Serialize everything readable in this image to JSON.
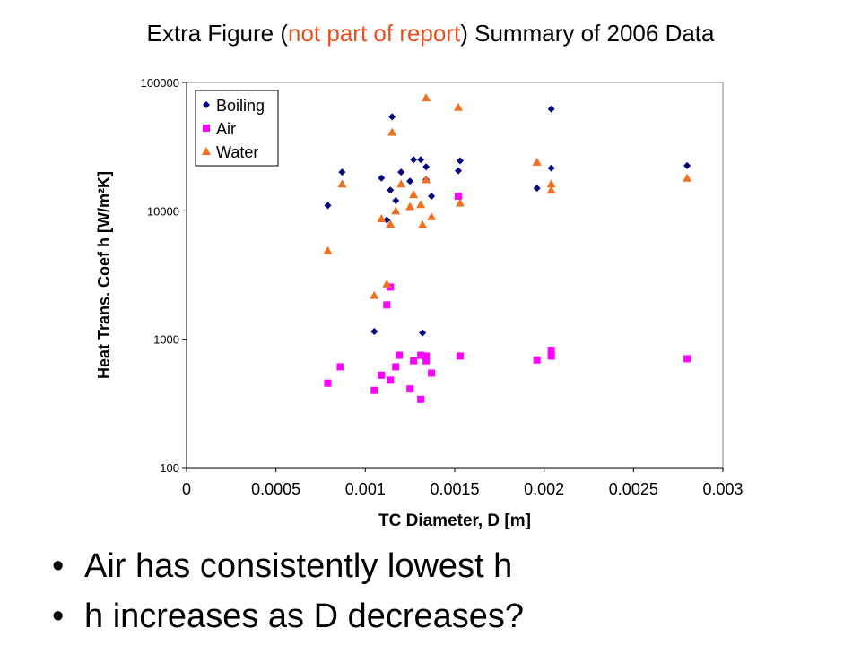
{
  "title": {
    "part1": "Extra Figure (",
    "highlight": "not part of report",
    "part2": ") Summary of 2006 Data",
    "highlight_color": "#e8501d"
  },
  "bullets": [
    "Air has consistently lowest h",
    "h increases as D decreases?"
  ],
  "chart_data": {
    "type": "scatter",
    "xlabel": "TC Diameter, D [m]",
    "ylabel": "Heat Trans. Coef h [W/m²K]",
    "x_scale": "linear",
    "y_scale": "log",
    "xlim": [
      0,
      0.003
    ],
    "ylim": [
      100,
      100000
    ],
    "x_ticks": [
      "0",
      "0.0005",
      "0.001",
      "0.0015",
      "0.002",
      "0.0025",
      "0.003"
    ],
    "y_ticks": [
      "100",
      "1000",
      "10000",
      "100000"
    ],
    "grid": false,
    "legend_position": "top-left",
    "series": [
      {
        "name": "Boiling",
        "marker": "diamond",
        "color": "#000080",
        "points": [
          [
            0.00079,
            11000
          ],
          [
            0.00087,
            20000
          ],
          [
            0.00105,
            1150
          ],
          [
            0.00109,
            18000
          ],
          [
            0.00112,
            8500
          ],
          [
            0.00114,
            14500
          ],
          [
            0.00115,
            54000
          ],
          [
            0.00117,
            12000
          ],
          [
            0.0012,
            20000
          ],
          [
            0.00125,
            17000
          ],
          [
            0.00127,
            25000
          ],
          [
            0.00131,
            25000
          ],
          [
            0.00132,
            1120
          ],
          [
            0.00134,
            22000
          ],
          [
            0.00134,
            17500
          ],
          [
            0.00137,
            13000
          ],
          [
            0.00152,
            20500
          ],
          [
            0.00153,
            24500
          ],
          [
            0.00196,
            15000
          ],
          [
            0.00204,
            62000
          ],
          [
            0.00204,
            21500
          ],
          [
            0.0028,
            22500
          ]
        ]
      },
      {
        "name": "Air",
        "marker": "square",
        "color": "#ff00ff",
        "points": [
          [
            0.00079,
            455
          ],
          [
            0.00086,
            610
          ],
          [
            0.00105,
            400
          ],
          [
            0.00109,
            525
          ],
          [
            0.00112,
            1850
          ],
          [
            0.00114,
            480
          ],
          [
            0.00114,
            2550
          ],
          [
            0.00117,
            610
          ],
          [
            0.00119,
            750
          ],
          [
            0.00125,
            410
          ],
          [
            0.00127,
            680
          ],
          [
            0.00131,
            340
          ],
          [
            0.00131,
            750
          ],
          [
            0.00134,
            680
          ],
          [
            0.00134,
            740
          ],
          [
            0.00137,
            545
          ],
          [
            0.00152,
            13000
          ],
          [
            0.00153,
            740
          ],
          [
            0.00196,
            690
          ],
          [
            0.00204,
            740
          ],
          [
            0.00204,
            820
          ],
          [
            0.0028,
            705
          ]
        ]
      },
      {
        "name": "Water",
        "marker": "triangle",
        "color": "#f07020",
        "points": [
          [
            0.00079,
            4900
          ],
          [
            0.00087,
            16200
          ],
          [
            0.00105,
            2200
          ],
          [
            0.00109,
            8700
          ],
          [
            0.00112,
            2700
          ],
          [
            0.00114,
            7900
          ],
          [
            0.00115,
            41000
          ],
          [
            0.00117,
            10000
          ],
          [
            0.0012,
            16200
          ],
          [
            0.00125,
            10800
          ],
          [
            0.00127,
            13400
          ],
          [
            0.00131,
            11200
          ],
          [
            0.00132,
            7800
          ],
          [
            0.00134,
            76000
          ],
          [
            0.00134,
            17500
          ],
          [
            0.00137,
            9000
          ],
          [
            0.00152,
            64000
          ],
          [
            0.00153,
            11500
          ],
          [
            0.00196,
            24000
          ],
          [
            0.00204,
            16200
          ],
          [
            0.00204,
            14500
          ],
          [
            0.0028,
            18000
          ]
        ]
      }
    ]
  }
}
